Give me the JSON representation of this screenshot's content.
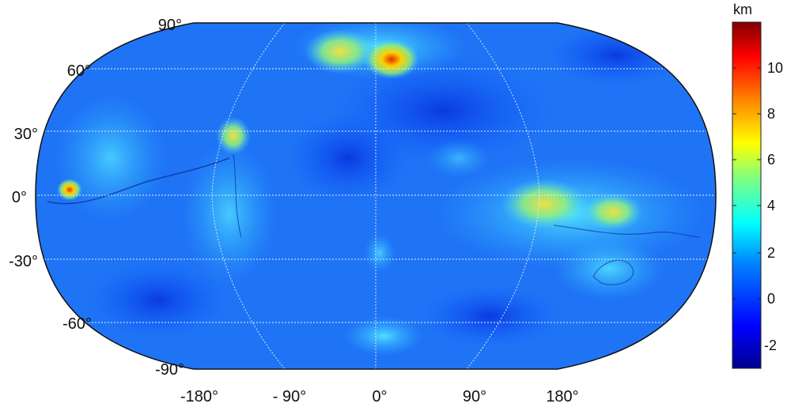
{
  "map": {
    "latitude_labels": [
      "90°",
      "60°",
      "30°",
      "0°",
      "-30°",
      "-60°",
      "-90°"
    ],
    "longitude_labels": [
      "-180°",
      "- 90°",
      "0°",
      "90°",
      "180°"
    ],
    "projection": "Robinson",
    "grid": true
  },
  "colorbar": {
    "unit": "km",
    "range": [
      -3,
      12
    ],
    "ticks": [
      "10",
      "8",
      "6",
      "4",
      "2",
      "0",
      "-2"
    ],
    "colormap": "jet",
    "colors": [
      "#00008f",
      "#0000ff",
      "#0080ff",
      "#00ffff",
      "#80ff80",
      "#ffff00",
      "#ff8000",
      "#ff0000",
      "#800000"
    ]
  }
}
